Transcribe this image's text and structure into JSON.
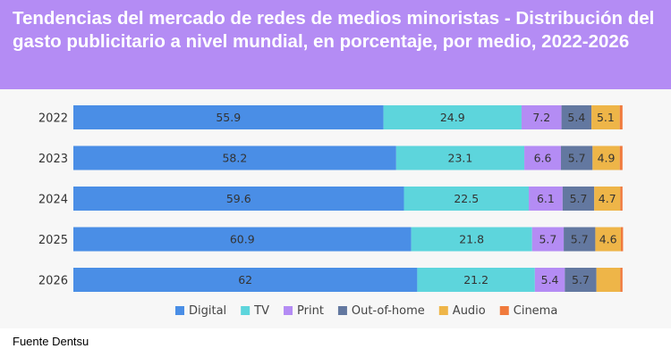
{
  "header": {
    "title": "Tendencias del mercado de redes de medios minoristas - Distribución del gasto publicitario a nivel mundial, en porcentaje, por medio, 2022-2026"
  },
  "footer": {
    "source": "Fuente Dentsu"
  },
  "chart_data": {
    "type": "bar",
    "orientation": "horizontal",
    "stacked": true,
    "categories": [
      "2022",
      "2023",
      "2024",
      "2025",
      "2026"
    ],
    "xlim": [
      0,
      100
    ],
    "grid": false,
    "legend_position": "bottom",
    "series": [
      {
        "name": "Digital",
        "color": "#4a8ee6",
        "values": [
          55.9,
          58.2,
          59.6,
          60.9,
          62
        ],
        "labels": [
          "55.9",
          "58.2",
          "59.6",
          "60.9",
          "62"
        ]
      },
      {
        "name": "TV",
        "color": "#5dd5dc",
        "values": [
          24.9,
          23.1,
          22.5,
          21.8,
          21.2
        ],
        "labels": [
          "24.9",
          "23.1",
          "22.5",
          "21.8",
          "21.2"
        ]
      },
      {
        "name": "Print",
        "color": "#b48cf4",
        "values": [
          7.2,
          6.6,
          6.1,
          5.7,
          5.4
        ],
        "labels": [
          "7.2",
          "6.6",
          "6.1",
          "5.7",
          "5.4"
        ]
      },
      {
        "name": "Out-of-home",
        "color": "#6378a0",
        "values": [
          5.4,
          5.7,
          5.7,
          5.7,
          5.7
        ],
        "labels": [
          "5.4",
          "5.7",
          "5.7",
          "5.7",
          "5.7"
        ]
      },
      {
        "name": "Audio",
        "color": "#eeb548",
        "values": [
          5.1,
          4.9,
          4.7,
          4.6,
          4.3
        ],
        "labels": [
          "5.1",
          "4.9",
          "4.7",
          "4.6",
          ""
        ]
      },
      {
        "name": "Cinema",
        "color": "#f07a3c",
        "values": [
          0.5,
          0.5,
          0.4,
          0.4,
          0.4
        ],
        "labels": [
          "",
          "",
          "",
          "",
          ""
        ]
      }
    ]
  }
}
